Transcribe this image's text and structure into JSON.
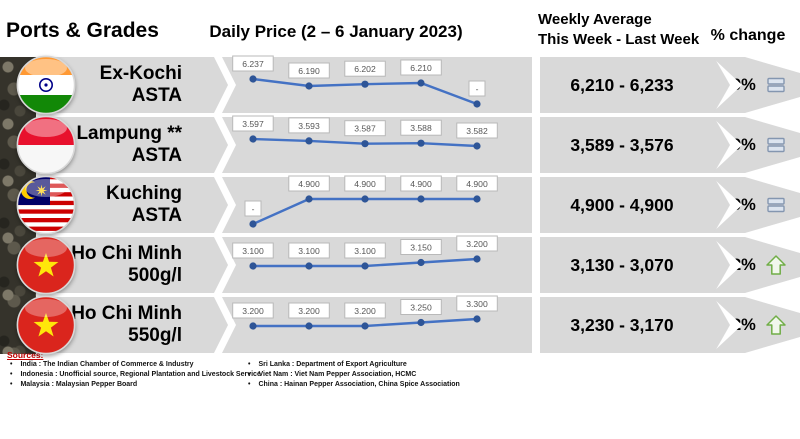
{
  "header": {
    "ports_grades_label": "Ports & Grades",
    "daily_price_label": "Daily Price (2 – 6 January 2023)",
    "weekly_average_line1": "Weekly Average",
    "weekly_average_line2": "This Week - Last Week",
    "percent_change_label": "% change"
  },
  "rows": [
    {
      "port": "Ex-Kochi",
      "grade": "ASTA",
      "flag": "india",
      "weekly_average": "6,210 - 6,233",
      "percent_change": "0%",
      "trend": "equal"
    },
    {
      "port": "Lampung **",
      "grade": "ASTA",
      "flag": "indonesia",
      "weekly_average": "3,589 - 3,576",
      "percent_change": "0%",
      "trend": "equal"
    },
    {
      "port": "Kuching",
      "grade": "ASTA",
      "flag": "malaysia",
      "weekly_average": "4,900 - 4,900",
      "percent_change": "0%",
      "trend": "equal"
    },
    {
      "port": "Ho Chi Minh",
      "grade": "500g/l",
      "flag": "vietnam",
      "weekly_average": "3,130 - 3,070",
      "percent_change": "2%",
      "trend": "up"
    },
    {
      "port": "Ho Chi Minh",
      "grade": "550g/l",
      "flag": "vietnam",
      "weekly_average": "3,230 - 3,170",
      "percent_change": "2%",
      "trend": "up"
    }
  ],
  "chart_data": [
    {
      "type": "line",
      "name": "Ex-Kochi ASTA daily price",
      "point_labels": [
        "6.237",
        "6.190",
        "6.202",
        "6.210",
        "-"
      ],
      "values": [
        6237,
        6190,
        6202,
        6210,
        null
      ],
      "line_color": "#4472C4"
    },
    {
      "type": "line",
      "name": "Lampung ASTA daily price",
      "point_labels": [
        "3.597",
        "3.593",
        "3.587",
        "3.588",
        "3.582"
      ],
      "values": [
        3597,
        3593,
        3587,
        3588,
        3582
      ],
      "line_color": "#4472C4"
    },
    {
      "type": "line",
      "name": "Kuching ASTA daily price",
      "point_labels": [
        "-",
        "4.900",
        "4.900",
        "4.900",
        "4.900"
      ],
      "values": [
        null,
        4900,
        4900,
        4900,
        4900
      ],
      "line_color": "#4472C4"
    },
    {
      "type": "line",
      "name": "Ho Chi Minh 500g/l daily price",
      "point_labels": [
        "3.100",
        "3.100",
        "3.100",
        "3.150",
        "3.200"
      ],
      "values": [
        3100,
        3100,
        3100,
        3150,
        3200
      ],
      "line_color": "#4472C4"
    },
    {
      "type": "line",
      "name": "Ho Chi Minh 550g/l daily price",
      "point_labels": [
        "3.200",
        "3.200",
        "3.200",
        "3.250",
        "3.300"
      ],
      "values": [
        3200,
        3200,
        3200,
        3250,
        3300
      ],
      "line_color": "#4472C4"
    }
  ],
  "sources": {
    "heading": "Sources:",
    "left": [
      "India : The Indian Chamber of Commerce & Industry",
      "Indonesia : Unofficial source, Regional Plantation and Livestock Service",
      "Malaysia : Malaysian Pepper Board"
    ],
    "right": [
      "Sri Lanka : Department of Export Agriculture",
      "Viet Nam : Viet Nam Pepper Association, HCMC",
      "China : Hainan Pepper Association, China Spice Association"
    ]
  },
  "colors": {
    "band_gray": "#D9D9D9",
    "line_blue": "#4472C4",
    "marker_blue": "#2E5597",
    "up_green": "#70AD47",
    "equal_blue": "#8496B0",
    "sources_red": "#C00000"
  }
}
